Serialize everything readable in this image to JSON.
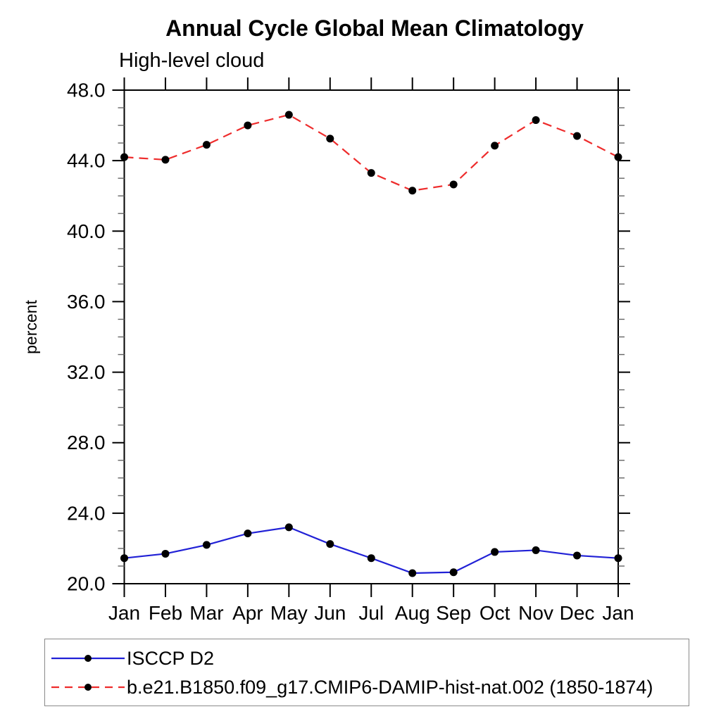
{
  "page": {
    "background": "#ffffff"
  },
  "chart_data": {
    "type": "line",
    "title": "Annual Cycle Global Mean Climatology",
    "subtitle": "High-level cloud",
    "ylabel": "percent",
    "xlabel": "",
    "categories": [
      "Jan",
      "Feb",
      "Mar",
      "Apr",
      "May",
      "Jun",
      "Jul",
      "Aug",
      "Sep",
      "Oct",
      "Nov",
      "Dec",
      "Jan"
    ],
    "ylim": [
      20,
      48
    ],
    "y_major_step": 4,
    "y_minor_step": 1,
    "y_tick_labels": [
      "20.0",
      "24.0",
      "28.0",
      "32.0",
      "36.0",
      "40.0",
      "44.0",
      "48.0"
    ],
    "grid": false,
    "frame": "box-with-outward-ticks",
    "legend_position": "bottom-left",
    "marker": "filled-circle",
    "marker_color": "#000000",
    "series": [
      {
        "name": "ISCCP D2",
        "color": "#2121d6",
        "line_style": "solid",
        "values": [
          21.45,
          21.7,
          22.2,
          22.85,
          23.2,
          22.25,
          21.45,
          20.6,
          20.65,
          21.8,
          21.9,
          21.6,
          21.45
        ]
      },
      {
        "name": "b.e21.B1850.f09_g17.CMIP6-DAMIP-hist-nat.002 (1850-1874)",
        "color": "#ee2c2c",
        "line_style": "dashed",
        "values": [
          44.2,
          44.05,
          44.9,
          46.0,
          46.6,
          45.25,
          43.3,
          42.3,
          42.65,
          44.85,
          46.3,
          45.4,
          44.2
        ]
      }
    ]
  }
}
